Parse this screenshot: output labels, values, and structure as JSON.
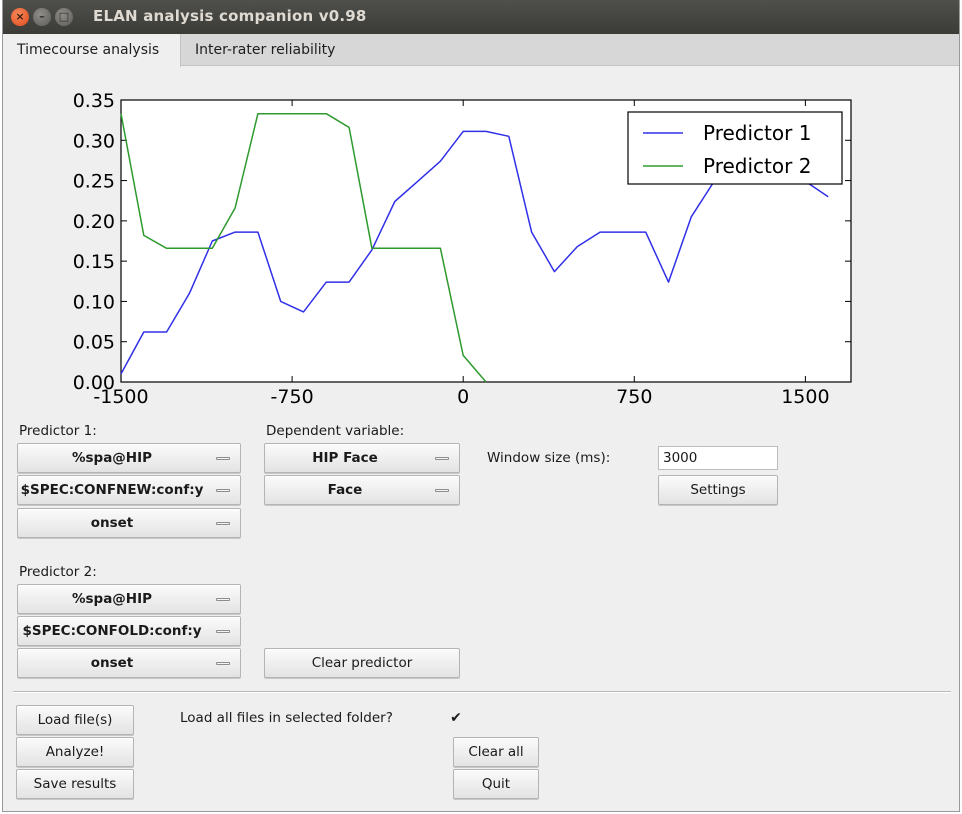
{
  "window": {
    "title": "ELAN analysis companion v0.98"
  },
  "tabs": [
    {
      "label": "Timecourse analysis",
      "active": true
    },
    {
      "label": "Inter-rater reliability",
      "active": false
    }
  ],
  "predictor1": {
    "label": "Predictor 1:",
    "tier": "%spa@HIP",
    "value": "$SPEC:CONFNEW:conf:y",
    "timing": "onset"
  },
  "dependent": {
    "label": "Dependent variable:",
    "tier": "HIP Face",
    "value": "Face"
  },
  "window_size": {
    "label": "Window size (ms):",
    "value": "3000"
  },
  "settings_button": "Settings",
  "predictor2": {
    "label": "Predictor 2:",
    "tier": "%spa@HIP",
    "value": "$SPEC:CONFOLD:conf:y",
    "timing": "onset"
  },
  "clear_predictor_button": "Clear predictor",
  "bottom": {
    "load_button": "Load file(s)",
    "analyze_button": "Analyze!",
    "save_button": "Save results",
    "load_all_label": "Load all files in selected folder?",
    "load_all_checked": true,
    "checkbox_mark": "✔",
    "clear_all_button": "Clear all",
    "quit_button": "Quit"
  },
  "chart_data": {
    "type": "line",
    "xlim": [
      -1500,
      1700
    ],
    "ylim": [
      0,
      0.35
    ],
    "xticks": [
      -1500,
      -750,
      0,
      750,
      1500
    ],
    "xtick_labels": [
      "-1500",
      "-750",
      "0",
      "750",
      "1500"
    ],
    "yticks": [
      0,
      0.05,
      0.1,
      0.15,
      0.2,
      0.25,
      0.3,
      0.35
    ],
    "ytick_labels": [
      "0.00",
      "0.05",
      "0.10",
      "0.15",
      "0.20",
      "0.25",
      "0.30",
      "0.35"
    ],
    "legend_position": "top-right",
    "grid": false,
    "series": [
      {
        "name": "Predictor 1",
        "color": "#3030e8",
        "x": [
          -1500,
          -1400,
          -1300,
          -1200,
          -1100,
          -1000,
          -900,
          -800,
          -700,
          -600,
          -500,
          -400,
          -300,
          -200,
          -100,
          0,
          100,
          200,
          300,
          400,
          500,
          600,
          700,
          800,
          900,
          1000,
          1100,
          1200,
          1300,
          1400,
          1500,
          1600
        ],
        "y": [
          0.01,
          0.062,
          0.062,
          0.11,
          0.175,
          0.186,
          0.186,
          0.1,
          0.087,
          0.124,
          0.124,
          0.164,
          0.224,
          0.249,
          0.274,
          0.311,
          0.311,
          0.305,
          0.186,
          0.137,
          0.168,
          0.186,
          0.186,
          0.186,
          0.124,
          0.205,
          0.249,
          0.262,
          0.249,
          0.249,
          0.249,
          0.23
        ]
      },
      {
        "name": "Predictor 2",
        "color": "#2e9a2e",
        "x": [
          -1500,
          -1400,
          -1300,
          -1200,
          -1100,
          -1000,
          -900,
          -800,
          -700,
          -600,
          -500,
          -400,
          -300,
          -200,
          -100,
          0,
          100
        ],
        "y": [
          0.333,
          0.182,
          0.166,
          0.166,
          0.166,
          0.216,
          0.333,
          0.333,
          0.333,
          0.333,
          0.316,
          0.166,
          0.166,
          0.166,
          0.166,
          0.033,
          0.0
        ]
      }
    ]
  }
}
